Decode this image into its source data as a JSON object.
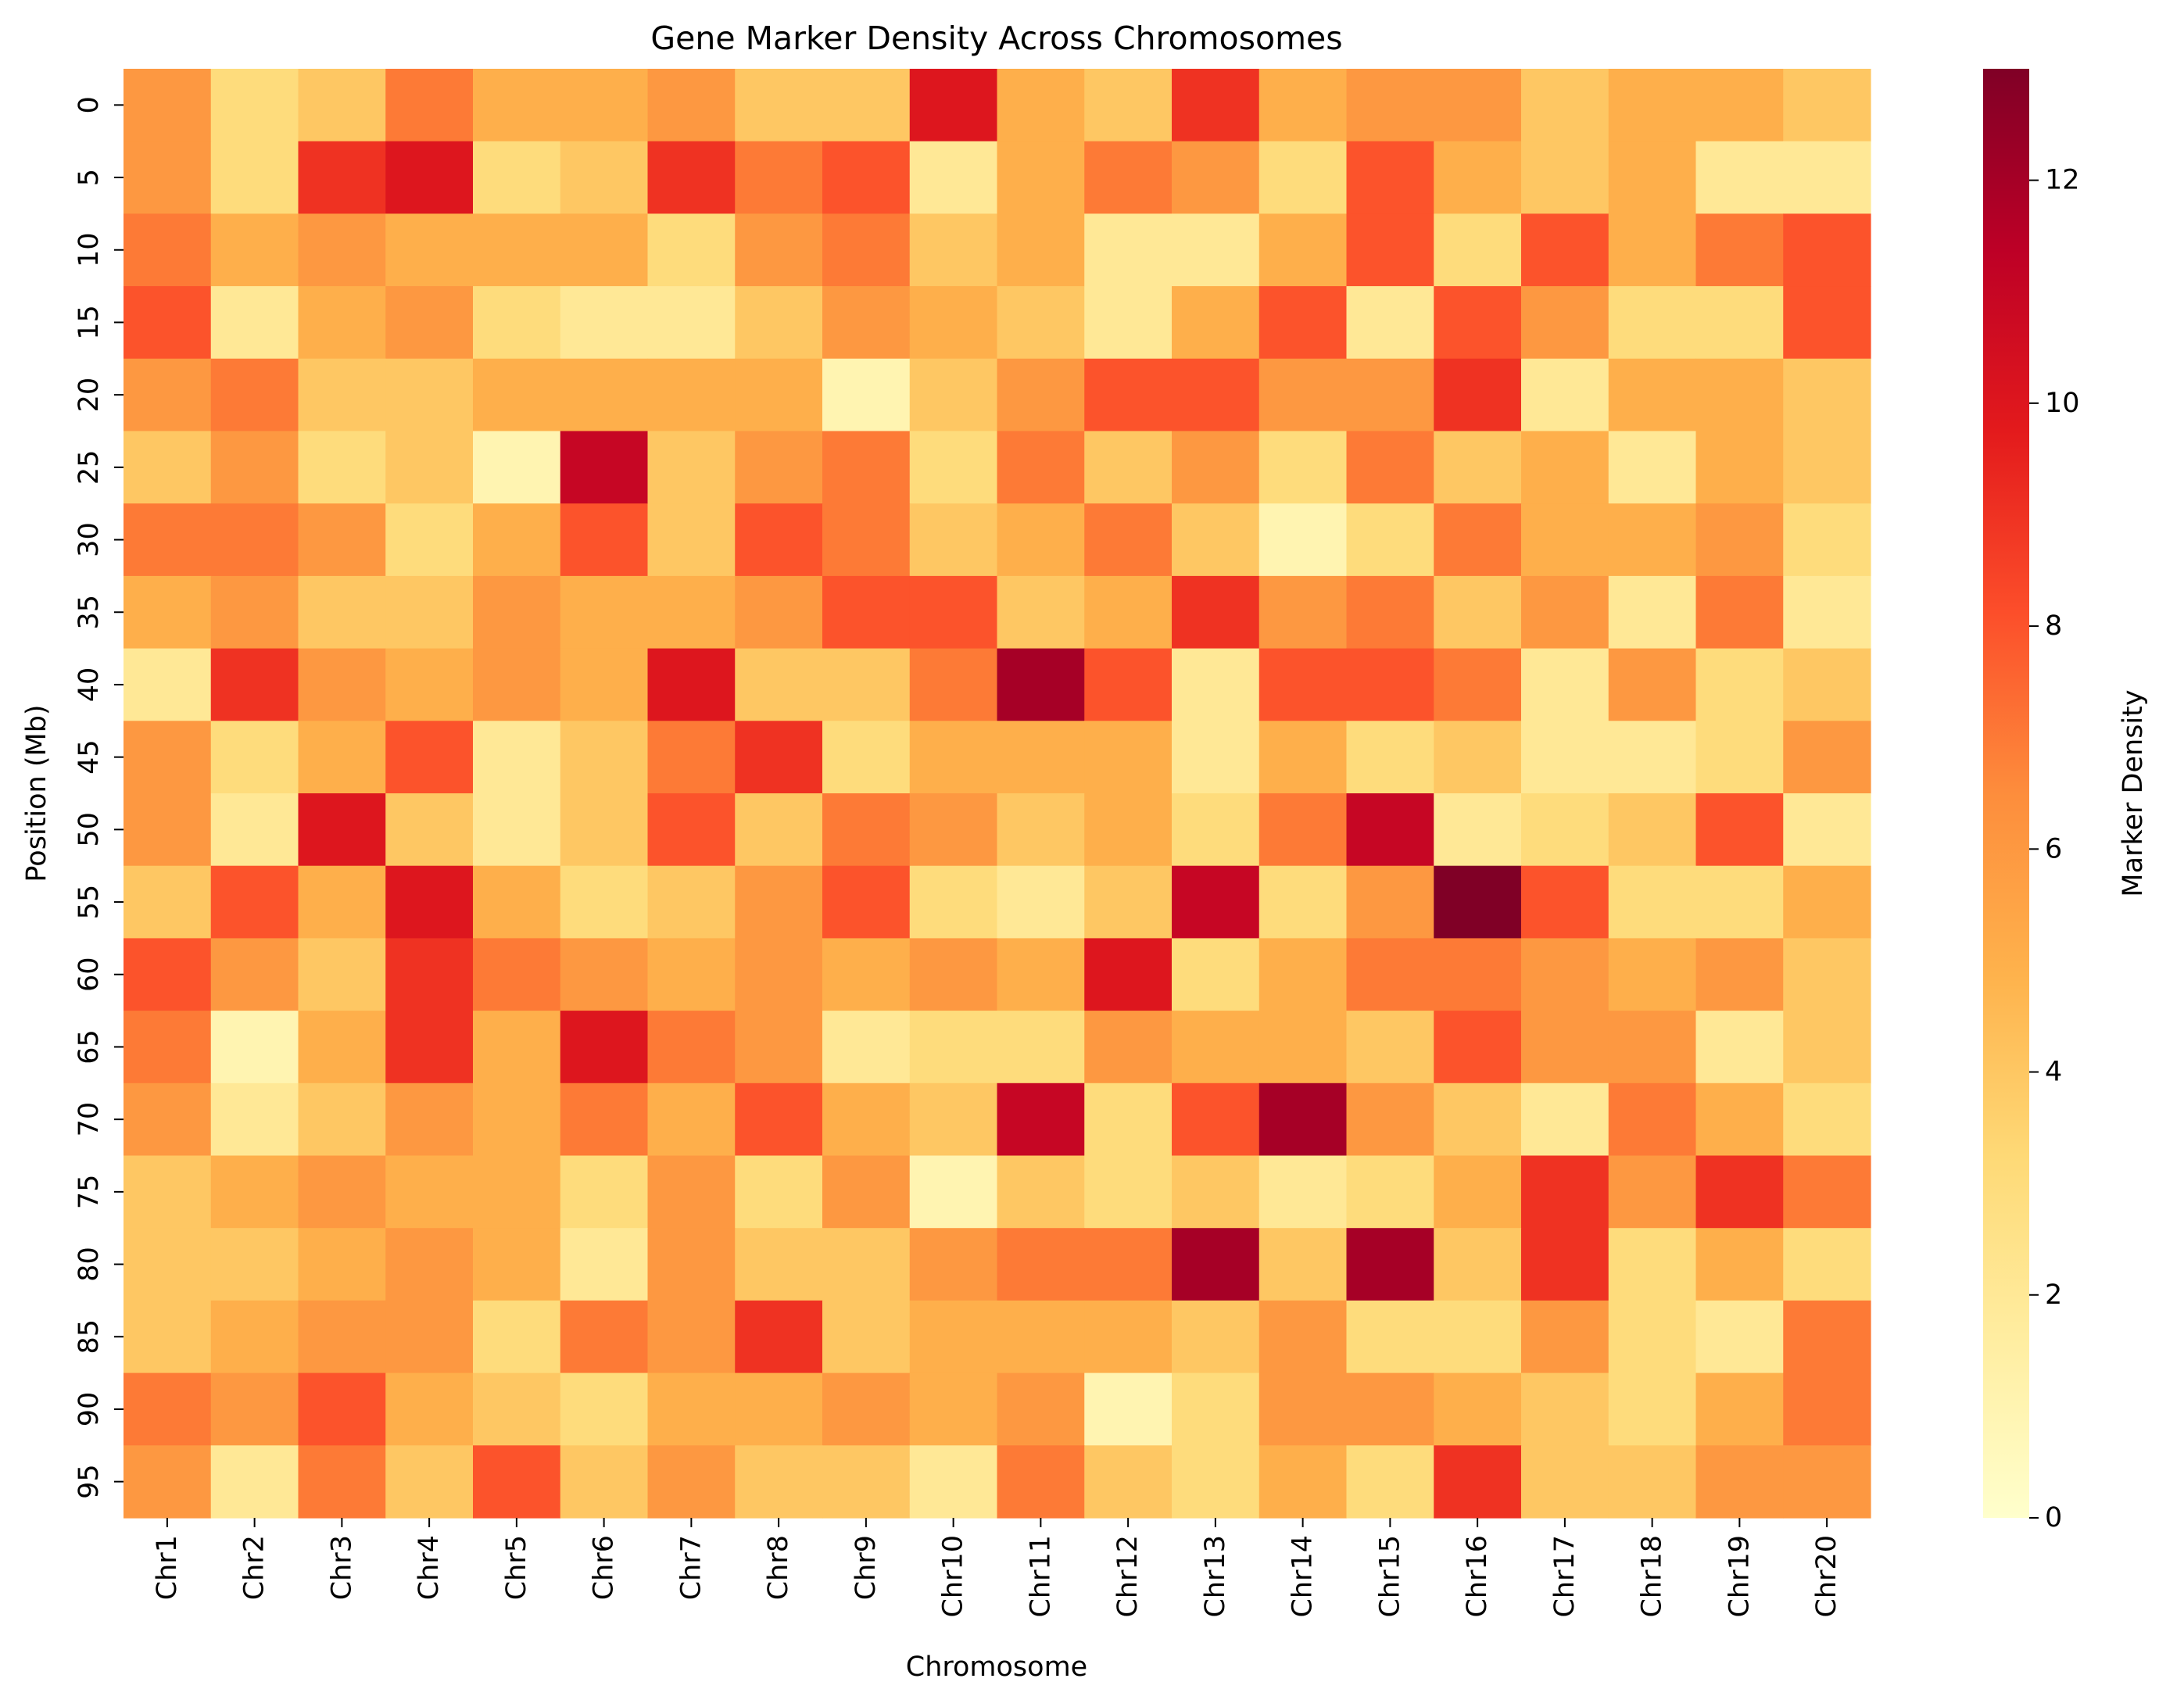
{
  "chart_data": {
    "type": "heatmap",
    "title": "Gene Marker Density Across Chromosomes",
    "xlabel": "Chromosome",
    "ylabel": "Position (Mb)",
    "colorbar_label": "Marker Density",
    "colormap": "YlOrRd",
    "vmin": 0,
    "vmax": 13,
    "colorbar_ticks": [
      "0",
      "2",
      "4",
      "6",
      "8",
      "10",
      "12"
    ],
    "x_categories": [
      "Chr1",
      "Chr2",
      "Chr3",
      "Chr4",
      "Chr5",
      "Chr6",
      "Chr7",
      "Chr8",
      "Chr9",
      "Chr10",
      "Chr11",
      "Chr12",
      "Chr13",
      "Chr14",
      "Chr15",
      "Chr16",
      "Chr17",
      "Chr18",
      "Chr19",
      "Chr20"
    ],
    "y_categories": [
      "0",
      "5",
      "10",
      "15",
      "20",
      "25",
      "30",
      "35",
      "40",
      "45",
      "50",
      "55",
      "60",
      "65",
      "70",
      "75",
      "80",
      "85",
      "90",
      "95"
    ],
    "values": [
      [
        6,
        3,
        4,
        7,
        5,
        5,
        6,
        4,
        4,
        10,
        5,
        4,
        9,
        5,
        6,
        6,
        4,
        5,
        5,
        4
      ],
      [
        6,
        3,
        9,
        10,
        3,
        4,
        9,
        7,
        8,
        2,
        5,
        7,
        6,
        3,
        8,
        5,
        4,
        5,
        2,
        2
      ],
      [
        7,
        5,
        6,
        5,
        5,
        5,
        3,
        6,
        7,
        4,
        5,
        2,
        2,
        5,
        8,
        3,
        8,
        5,
        7,
        8
      ],
      [
        8,
        2,
        5,
        6,
        3,
        2,
        2,
        4,
        6,
        5,
        4,
        2,
        5,
        8,
        2,
        8,
        6,
        3,
        3,
        8
      ],
      [
        6,
        7,
        4,
        4,
        5,
        5,
        5,
        5,
        1,
        4,
        6,
        8,
        8,
        6,
        6,
        9,
        2,
        5,
        5,
        4
      ],
      [
        4,
        6,
        3,
        4,
        1,
        11,
        4,
        6,
        7,
        3,
        7,
        4,
        6,
        3,
        7,
        4,
        5,
        2,
        5,
        4
      ],
      [
        7,
        7,
        6,
        3,
        5,
        8,
        4,
        8,
        7,
        4,
        5,
        7,
        4,
        1,
        3,
        7,
        5,
        5,
        6,
        3
      ],
      [
        5,
        6,
        4,
        4,
        6,
        5,
        5,
        6,
        8,
        8,
        4,
        5,
        9,
        6,
        7,
        4,
        6,
        2,
        7,
        2
      ],
      [
        2,
        9,
        6,
        5,
        6,
        5,
        10,
        4,
        4,
        7,
        12,
        8,
        2,
        8,
        8,
        7,
        2,
        6,
        3,
        4
      ],
      [
        6,
        3,
        5,
        8,
        2,
        4,
        7,
        9,
        3,
        5,
        5,
        5,
        2,
        5,
        3,
        4,
        2,
        2,
        3,
        6
      ],
      [
        6,
        2,
        10,
        4,
        2,
        4,
        8,
        4,
        7,
        6,
        4,
        5,
        3,
        7,
        11,
        2,
        3,
        4,
        8,
        2
      ],
      [
        4,
        8,
        5,
        10,
        5,
        3,
        4,
        6,
        8,
        3,
        2,
        4,
        11,
        3,
        6,
        13,
        8,
        3,
        3,
        5
      ],
      [
        8,
        6,
        4,
        9,
        7,
        6,
        5,
        6,
        5,
        6,
        5,
        10,
        3,
        5,
        7,
        7,
        6,
        5,
        6,
        4
      ],
      [
        7,
        1,
        5,
        9,
        5,
        10,
        7,
        6,
        2,
        3,
        3,
        6,
        5,
        5,
        4,
        8,
        6,
        6,
        2,
        4
      ],
      [
        6,
        2,
        4,
        6,
        5,
        7,
        5,
        8,
        5,
        4,
        11,
        3,
        8,
        12,
        6,
        4,
        2,
        7,
        5,
        3
      ],
      [
        4,
        5,
        6,
        5,
        5,
        3,
        6,
        3,
        6,
        1,
        4,
        3,
        4,
        2,
        3,
        5,
        9,
        6,
        9,
        7
      ],
      [
        4,
        4,
        5,
        6,
        5,
        2,
        6,
        4,
        4,
        6,
        7,
        7,
        12,
        4,
        12,
        4,
        9,
        3,
        5,
        3
      ],
      [
        4,
        5,
        6,
        6,
        3,
        7,
        6,
        9,
        4,
        5,
        5,
        5,
        4,
        6,
        3,
        3,
        6,
        3,
        2,
        7
      ],
      [
        7,
        6,
        8,
        5,
        4,
        3,
        5,
        5,
        6,
        5,
        6,
        1,
        3,
        6,
        6,
        5,
        4,
        3,
        5,
        7
      ],
      [
        6,
        2,
        7,
        4,
        8,
        4,
        6,
        4,
        4,
        2,
        7,
        4,
        3,
        5,
        3,
        9,
        4,
        4,
        6,
        6
      ]
    ]
  }
}
